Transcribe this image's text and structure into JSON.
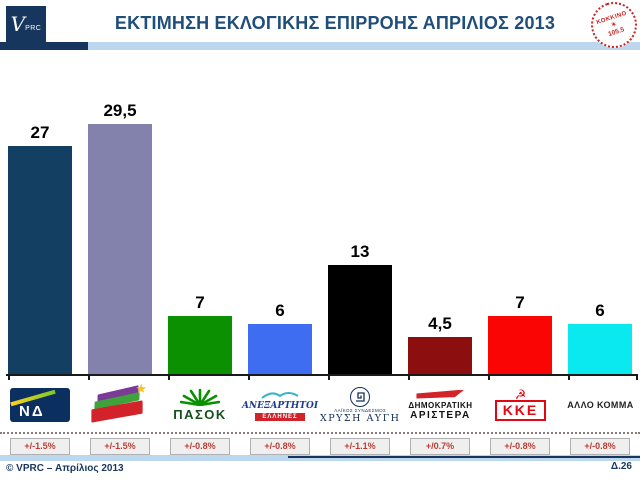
{
  "header": {
    "brand": {
      "letter": "V",
      "sub": "PRC"
    },
    "title": "ΕΚΤΙΜΗΣΗ ΕΚΛΟΓΙΚΗΣ ΕΠΙΡΡΟΗΣ ΑΠΡΙΛΙΟΣ 2013",
    "stamp": {
      "line1": "ΚΟΚΚΙΝΟ",
      "figure": "✶",
      "line2": "105.5"
    },
    "colors": {
      "dark": "#17365d",
      "light": "#bdd7ee",
      "title": "#1f4e7b"
    }
  },
  "chart_data": {
    "type": "bar",
    "title": "ΕΚΤΙΜΗΣΗ ΕΚΛΟΓΙΚΗΣ ΕΠΙΡΡΟΗΣ ΑΠΡΙΛΙΟΣ 2013",
    "categories": [
      "ΝΔ",
      "ΣΥΡΙΖΑ",
      "ΠΑΣΟΚ",
      "ΑΝΕΞΑΡΤΗΤΟΙ ΕΛΛΗΝΕΣ",
      "ΧΡΥΣΗ ΑΥΓΗ",
      "ΔΗΜΟΚΡΑΤΙΚΗ ΑΡΙΣΤΕΡΑ",
      "ΚΚΕ",
      "ΑΛΛΟ ΚΟΜΜΑ"
    ],
    "values": [
      27,
      29.5,
      7,
      6,
      13,
      4.5,
      7,
      6
    ],
    "value_labels": [
      "27",
      "29,5",
      "7",
      "6",
      "13",
      "4,5",
      "7",
      "6"
    ],
    "bar_colors": [
      "#133f63",
      "#8282ac",
      "#0a9000",
      "#3e6df1",
      "#000000",
      "#8c0e0e",
      "#fa0404",
      "#0ae8f0"
    ],
    "margins_of_error": [
      "+/-1.5%",
      "+/-1.5%",
      "+/-0.8%",
      "+/-0.8%",
      "+/-1.1%",
      "+/0.7%",
      "+/-0.8%",
      "+/-0.8%"
    ],
    "ylim": [
      0,
      30
    ],
    "grid": false,
    "legend": "none",
    "decimal_separator": ",",
    "moe_text_color": "#bf3b30"
  },
  "party_logos": {
    "nd": {
      "text": "ΝΔ"
    },
    "syriza": {
      "star": "★"
    },
    "pasok": {
      "text": "ΠΑΣΟΚ"
    },
    "anel": {
      "line1": "ΑΝΕΞΑΡΤΗΤΟΙ",
      "line2": "ΕΛΛΗΝΕΣ"
    },
    "xa": {
      "line1": "ΛΑΪΚΟΣ ΣΥΝΔΕΣΜΟΣ",
      "line2": "ΧΡΥΣΗ ΑΥΓΗ"
    },
    "dimar": {
      "line1": "ΔΗΜΟΚΡΑΤΙΚΗ",
      "line2": "ΑΡΙΣΤΕΡΑ"
    },
    "kke": {
      "symbol": "☭",
      "text": "ΚΚΕ"
    },
    "other": {
      "text": "ΑΛΛΟ ΚΟΜΜΑ"
    }
  },
  "footer": {
    "copyright": "© VPRC – Απρίλιος 2013",
    "page": "Δ.26"
  }
}
